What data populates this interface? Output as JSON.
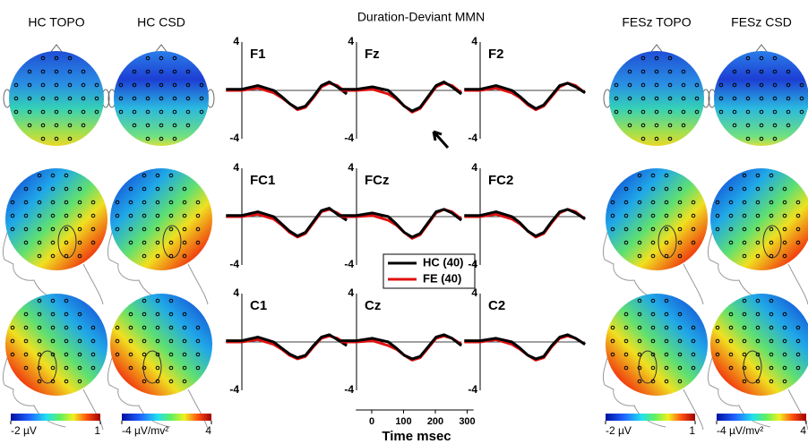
{
  "title": "Duration-Deviant MMN",
  "maps": {
    "hc_topo": "HC TOPO",
    "hc_csd": "HC CSD",
    "fesz_topo": "FESz TOPO",
    "fesz_csd": "FESz CSD"
  },
  "colorbars": [
    {
      "lim": [
        -2,
        1
      ],
      "ticks": [
        {
          "value": -2,
          "label": "-2 µV"
        },
        1
      ]
    },
    {
      "lim": [
        -4,
        4
      ],
      "ticks": [
        {
          "value": -4,
          "label": "-4 µV/mv²"
        },
        4
      ]
    },
    {
      "lim": [
        -2,
        1
      ],
      "ticks": [
        {
          "value": -2,
          "label": "-2 µV"
        },
        1
      ]
    },
    {
      "lim": [
        -4,
        4
      ],
      "ticks": [
        {
          "value": -4,
          "label": "-4 µV/mv²"
        },
        4
      ]
    }
  ],
  "time_axis": {
    "label": "Time msec",
    "xlim": [
      -50,
      320
    ],
    "xticks": [
      0,
      100,
      200,
      300
    ]
  },
  "chart_data": [
    {
      "type": "line",
      "title": "F1",
      "x": [
        -50,
        0,
        50,
        100,
        125,
        150,
        175,
        200,
        225,
        250,
        275,
        300,
        330
      ],
      "xlim": [
        -50,
        330
      ],
      "ylim": [
        -4,
        4
      ],
      "yticks": [
        -4,
        4
      ],
      "series": [
        {
          "color": "#000000",
          "values": [
            0.1,
            0.1,
            0.4,
            0,
            -0.5,
            -1.1,
            -1.5,
            -1.3,
            -0.5,
            0.4,
            0.7,
            0.3,
            -0.3
          ]
        },
        {
          "color": "#e01010",
          "values": [
            0,
            0,
            0.2,
            -0.2,
            -0.6,
            -1.1,
            -1.6,
            -1.4,
            -0.6,
            0.3,
            0.6,
            0.4,
            -0.2
          ]
        }
      ]
    },
    {
      "type": "line",
      "title": "Fz",
      "x": [
        -50,
        0,
        50,
        100,
        125,
        150,
        175,
        200,
        225,
        250,
        275,
        300,
        330
      ],
      "xlim": [
        -50,
        330
      ],
      "ylim": [
        -4,
        4
      ],
      "yticks": [
        -4,
        4
      ],
      "series": [
        {
          "color": "#000000",
          "values": [
            0.1,
            0.1,
            0.3,
            0,
            -0.6,
            -1.3,
            -1.7,
            -1.4,
            -0.5,
            0.4,
            0.7,
            0.3,
            -0.3
          ]
        },
        {
          "color": "#e01010",
          "values": [
            0,
            0,
            0.1,
            -0.3,
            -0.7,
            -1.3,
            -1.8,
            -1.5,
            -0.6,
            0.3,
            0.6,
            0.4,
            -0.2
          ]
        }
      ]
    },
    {
      "type": "line",
      "title": "F2",
      "x": [
        -50,
        0,
        50,
        100,
        125,
        150,
        175,
        200,
        225,
        250,
        275,
        300,
        330
      ],
      "xlim": [
        -50,
        330
      ],
      "ylim": [
        -4,
        4
      ],
      "yticks": [
        -4,
        4
      ],
      "series": [
        {
          "color": "#000000",
          "values": [
            0.1,
            0.1,
            0.4,
            0,
            -0.5,
            -1.1,
            -1.5,
            -1.2,
            -0.4,
            0.4,
            0.6,
            0.3,
            -0.2
          ]
        },
        {
          "color": "#e01010",
          "values": [
            0,
            0,
            0.2,
            -0.2,
            -0.6,
            -1.2,
            -1.6,
            -1.3,
            -0.5,
            0.3,
            0.6,
            0.4,
            -0.2
          ]
        }
      ]
    },
    {
      "type": "line",
      "title": "FC1",
      "x": [
        -50,
        0,
        50,
        100,
        125,
        150,
        175,
        200,
        225,
        250,
        275,
        300,
        330
      ],
      "xlim": [
        -50,
        330
      ],
      "ylim": [
        -4,
        4
      ],
      "yticks": [
        -4,
        4
      ],
      "series": [
        {
          "color": "#000000",
          "values": [
            0.1,
            0.1,
            0.4,
            0,
            -0.6,
            -1.2,
            -1.6,
            -1.3,
            -0.4,
            0.5,
            0.7,
            0.2,
            -0.3
          ]
        },
        {
          "color": "#e01010",
          "values": [
            0,
            0,
            0.2,
            -0.2,
            -0.7,
            -1.3,
            -1.7,
            -1.4,
            -0.5,
            0.4,
            0.6,
            0.3,
            -0.2
          ]
        }
      ]
    },
    {
      "type": "line",
      "title": "FCz",
      "x": [
        -50,
        0,
        50,
        100,
        125,
        150,
        175,
        200,
        225,
        250,
        275,
        300,
        330
      ],
      "xlim": [
        -50,
        330
      ],
      "ylim": [
        -4,
        4
      ],
      "yticks": [
        -4,
        4
      ],
      "series": [
        {
          "name": "HC (40)",
          "color": "#000000",
          "values": [
            0.1,
            0.1,
            0.3,
            0,
            -0.6,
            -1.3,
            -1.7,
            -1.4,
            -0.5,
            0.4,
            0.6,
            0.3,
            -0.3
          ]
        },
        {
          "name": "FE (40)",
          "color": "#e01010",
          "values": [
            0,
            0,
            0.1,
            -0.3,
            -0.7,
            -1.3,
            -1.8,
            -1.5,
            -0.6,
            0.3,
            0.6,
            0.4,
            -0.2
          ]
        }
      ]
    },
    {
      "type": "line",
      "title": "FC2",
      "x": [
        -50,
        0,
        50,
        100,
        125,
        150,
        175,
        200,
        225,
        250,
        275,
        300,
        330
      ],
      "xlim": [
        -50,
        330
      ],
      "ylim": [
        -4,
        4
      ],
      "yticks": [
        -4,
        4
      ],
      "series": [
        {
          "color": "#000000",
          "values": [
            0.1,
            0.1,
            0.4,
            0,
            -0.5,
            -1.2,
            -1.6,
            -1.3,
            -0.4,
            0.4,
            0.6,
            0.3,
            -0.2
          ]
        },
        {
          "color": "#e01010",
          "values": [
            0,
            0,
            0.2,
            -0.2,
            -0.6,
            -1.2,
            -1.7,
            -1.4,
            -0.5,
            0.3,
            0.6,
            0.4,
            -0.2
          ]
        }
      ]
    },
    {
      "type": "line",
      "title": "C1",
      "x": [
        -50,
        0,
        50,
        100,
        125,
        150,
        175,
        200,
        225,
        250,
        275,
        300,
        330
      ],
      "xlim": [
        -50,
        330
      ],
      "ylim": [
        -4,
        4
      ],
      "yticks": [
        -4,
        4
      ],
      "series": [
        {
          "color": "#000000",
          "values": [
            0.1,
            0.1,
            0.4,
            0,
            -0.5,
            -1.0,
            -1.3,
            -1.1,
            -0.3,
            0.4,
            0.6,
            0.2,
            -0.3
          ]
        },
        {
          "color": "#e01010",
          "values": [
            0,
            0,
            0.2,
            -0.2,
            -0.6,
            -1.1,
            -1.4,
            -1.2,
            -0.4,
            0.3,
            0.5,
            0.3,
            -0.2
          ]
        }
      ]
    },
    {
      "type": "line",
      "title": "Cz",
      "x": [
        -50,
        0,
        50,
        100,
        125,
        150,
        175,
        200,
        225,
        250,
        275,
        300,
        330
      ],
      "xlim": [
        -50,
        330
      ],
      "ylim": [
        -4,
        4
      ],
      "yticks": [
        -4,
        4
      ],
      "series": [
        {
          "color": "#000000",
          "values": [
            0.1,
            0.1,
            0.3,
            0,
            -0.5,
            -1.1,
            -1.4,
            -1.2,
            -0.4,
            0.4,
            0.6,
            0.3,
            -0.3
          ]
        },
        {
          "color": "#e01010",
          "values": [
            0,
            0,
            0.1,
            -0.3,
            -0.6,
            -1.1,
            -1.5,
            -1.3,
            -0.5,
            0.3,
            0.5,
            0.3,
            -0.2
          ]
        }
      ]
    },
    {
      "type": "line",
      "title": "C2",
      "x": [
        -50,
        0,
        50,
        100,
        125,
        150,
        175,
        200,
        225,
        250,
        275,
        300,
        330
      ],
      "xlim": [
        -50,
        330
      ],
      "ylim": [
        -4,
        4
      ],
      "yticks": [
        -4,
        4
      ],
      "series": [
        {
          "color": "#000000",
          "values": [
            0.1,
            0.1,
            0.3,
            0,
            -0.5,
            -1.1,
            -1.4,
            -1.2,
            -0.3,
            0.4,
            0.6,
            0.3,
            -0.2
          ]
        },
        {
          "color": "#e01010",
          "values": [
            0,
            0,
            0.2,
            -0.2,
            -0.6,
            -1.1,
            -1.5,
            -1.3,
            -0.4,
            0.3,
            0.5,
            0.3,
            -0.2
          ]
        }
      ]
    }
  ]
}
